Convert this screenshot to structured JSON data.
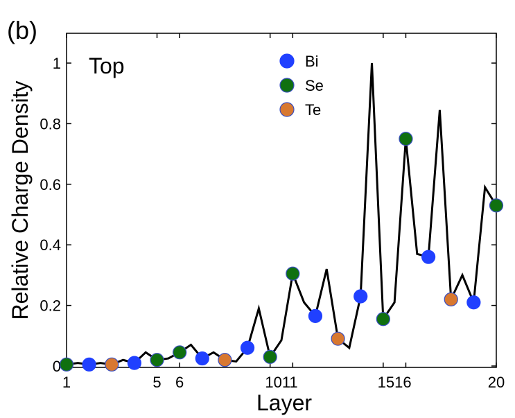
{
  "chart_data": {
    "type": "line",
    "panel_label": "(b)",
    "annotation": "Top",
    "xlabel": "Layer",
    "ylabel": "Relative Charge Density",
    "xlim": [
      1,
      20
    ],
    "ylim": [
      0,
      1.1
    ],
    "x_ticks": [
      1,
      5,
      6,
      10,
      11,
      15,
      16,
      20
    ],
    "x_tick_labels": [
      "1",
      "5",
      "6",
      "1011",
      "1516",
      "20"
    ],
    "x_tick_label_positions": [
      1,
      5,
      6,
      10.5,
      15.5,
      20
    ],
    "y_ticks": [
      0,
      0.2,
      0.4,
      0.6,
      0.8,
      1
    ],
    "y_tick_labels": [
      "0",
      "0.2",
      "0.4",
      "0.6",
      "0.8",
      "1"
    ],
    "grid": false,
    "legend_position": "top-center",
    "line": {
      "color": "#000000",
      "x": [
        1,
        1.5,
        2,
        2.5,
        3,
        3.5,
        4,
        4.5,
        5,
        5.5,
        6,
        6.5,
        7,
        7.5,
        8,
        8.5,
        9,
        9.5,
        10,
        10.5,
        11,
        11.5,
        12,
        12.5,
        13,
        13.5,
        14,
        14.5,
        15,
        15.5,
        16,
        16.5,
        17,
        17.5,
        18,
        18.5,
        19,
        19.5,
        20
      ],
      "y": [
        0.005,
        0.01,
        0.005,
        0.01,
        0.005,
        0.02,
        0.01,
        0.045,
        0.02,
        0.025,
        0.045,
        0.07,
        0.025,
        0.045,
        0.02,
        0.015,
        0.06,
        0.19,
        0.03,
        0.085,
        0.305,
        0.21,
        0.165,
        0.32,
        0.09,
        0.06,
        0.23,
        1.0,
        0.155,
        0.21,
        0.75,
        0.37,
        0.36,
        0.845,
        0.22,
        0.3,
        0.21,
        0.59,
        0.53
      ]
    },
    "series": [
      {
        "name": "Bi",
        "color": "#2040ff",
        "points": [
          [
            2,
            0.005
          ],
          [
            4,
            0.01
          ],
          [
            7,
            0.025
          ],
          [
            9,
            0.06
          ],
          [
            12,
            0.165
          ],
          [
            14,
            0.23
          ],
          [
            17,
            0.36
          ],
          [
            19,
            0.21
          ]
        ]
      },
      {
        "name": "Se",
        "color": "#107010",
        "points": [
          [
            1,
            0.005
          ],
          [
            5,
            0.02
          ],
          [
            6,
            0.045
          ],
          [
            10,
            0.03
          ],
          [
            11,
            0.305
          ],
          [
            15,
            0.155
          ],
          [
            16,
            0.75
          ],
          [
            20,
            0.53
          ]
        ]
      },
      {
        "name": "Te",
        "color": "#d87830",
        "points": [
          [
            3,
            0.005
          ],
          [
            8,
            0.02
          ],
          [
            13,
            0.09
          ],
          [
            18,
            0.22
          ]
        ]
      }
    ]
  }
}
